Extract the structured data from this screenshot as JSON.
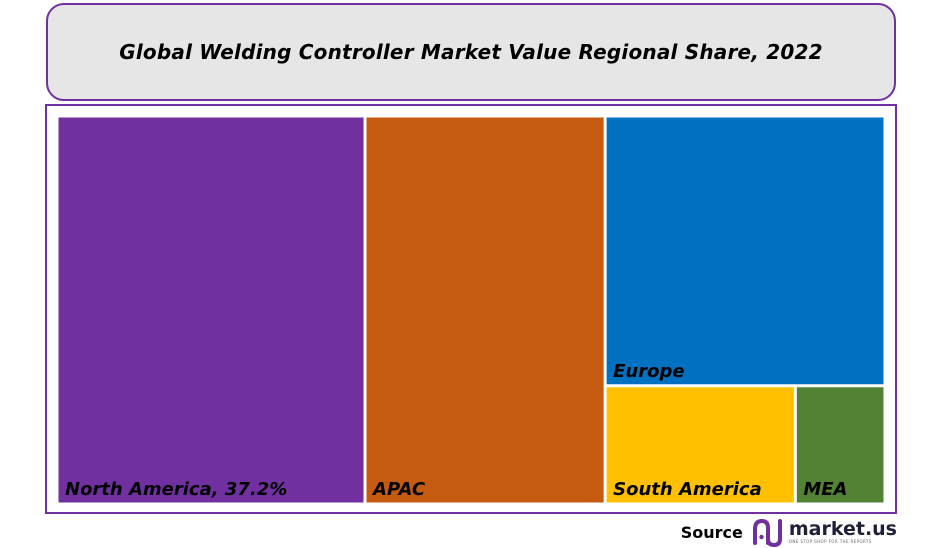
{
  "chart_data": {
    "type": "treemap",
    "title": "Global Welding Controller Market Value Regional Share, 2022",
    "items": [
      {
        "name": "North America",
        "label": "North America, 37.2%",
        "value": 37.2,
        "color": "#7030a0"
      },
      {
        "name": "APAC",
        "label": "APAC",
        "value": 29.0,
        "color": "#c55a11"
      },
      {
        "name": "Europe",
        "label": "Europe",
        "value": 23.5,
        "color": "#0070c0"
      },
      {
        "name": "South America",
        "label": "South America",
        "value": 7.0,
        "color": "#ffc000"
      },
      {
        "name": "MEA",
        "label": "MEA",
        "value": 3.3,
        "color": "#548235"
      }
    ]
  },
  "footer": {
    "source_label": "Source",
    "brand_name": "market.us",
    "brand_tagline": "ONE STOP SHOP FOR THE REPORTS",
    "brand_color": "#7030a0"
  }
}
